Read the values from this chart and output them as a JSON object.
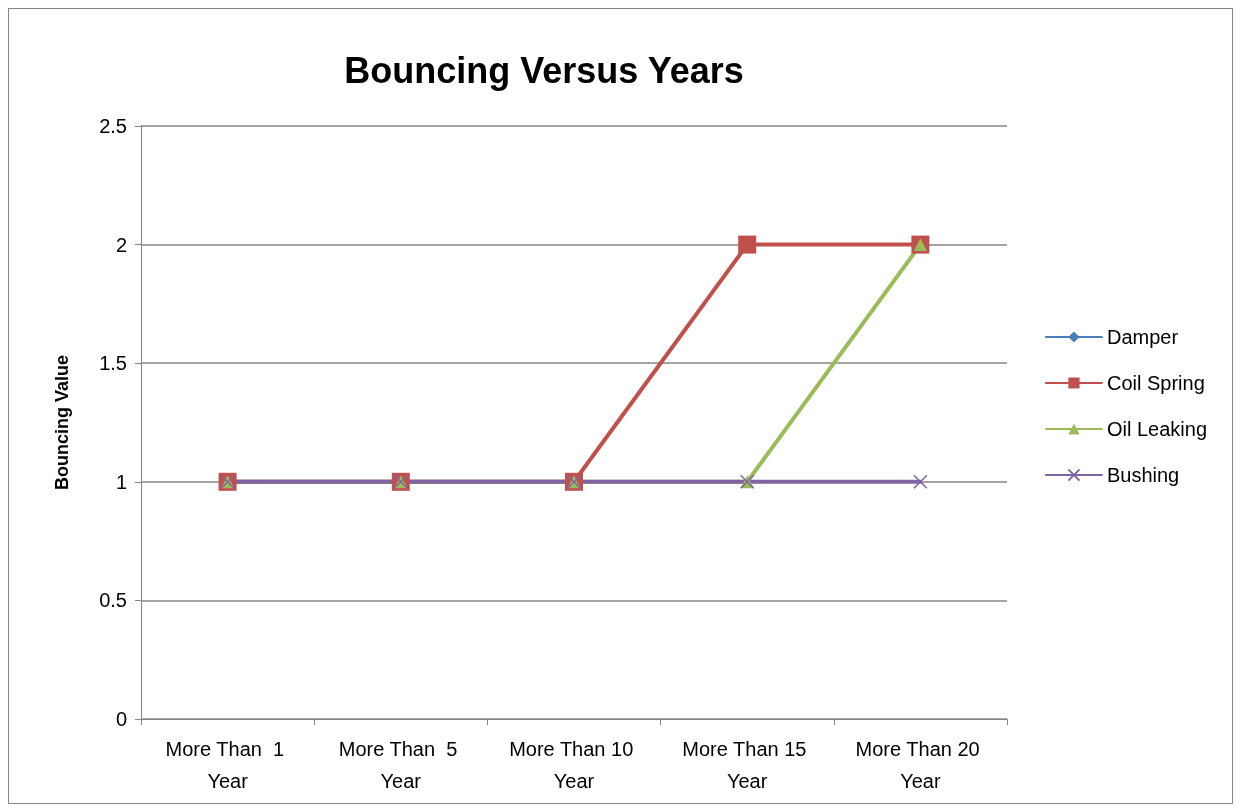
{
  "chart_data": {
    "type": "line",
    "title": "Bouncing Versus Years",
    "ylabel": "Bouncing Value",
    "categories": [
      "More Than  1 Year",
      "More Than  5 Year",
      "More Than 10 Year",
      "More Than 15 Year",
      "More Than 20 Year"
    ],
    "series": [
      {
        "name": "Damper",
        "color": "#4a7ebb",
        "marker": "diamond",
        "values": [
          null,
          null,
          null,
          null,
          null
        ]
      },
      {
        "name": "Coil Spring",
        "color": "#c0504d",
        "marker": "square",
        "values": [
          1,
          1,
          1,
          2,
          2
        ]
      },
      {
        "name": "Oil Leaking",
        "color": "#9bbb59",
        "marker": "triangle",
        "values": [
          1,
          1,
          1,
          1,
          2
        ]
      },
      {
        "name": "Bushing",
        "color": "#8064a2",
        "marker": "cross",
        "values": [
          1,
          1,
          1,
          1,
          1
        ]
      }
    ],
    "ylim": [
      0,
      2.5
    ],
    "yticks": [
      0,
      0.5,
      1,
      1.5,
      2,
      2.5
    ],
    "grid": "y",
    "legend": "right",
    "line_style": "solid"
  }
}
